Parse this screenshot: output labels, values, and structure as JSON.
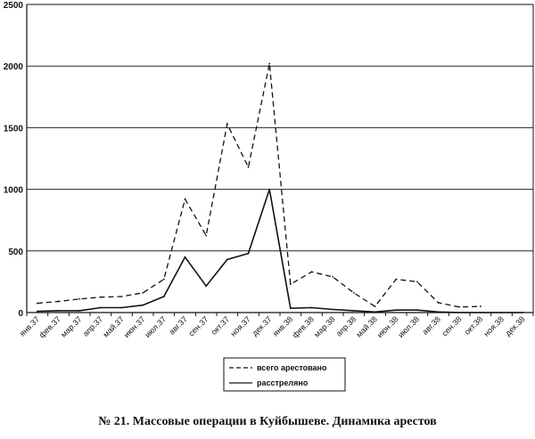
{
  "caption": "№ 21. Массовые операции в Куйбышеве. Динамика арестов",
  "chart_data": {
    "type": "line",
    "title": "",
    "xlabel": "",
    "ylabel": "",
    "ylim": [
      0,
      2500
    ],
    "yticks": [
      0,
      500,
      1000,
      1500,
      2000,
      2500
    ],
    "grid": true,
    "legend_position": "bottom-center",
    "categories": [
      "янв.37",
      "фев.37",
      "мар.37",
      "апр.37",
      "май.37",
      "июн.37",
      "июл.37",
      "авг.37",
      "сен.37",
      "окт.37",
      "ноя.37",
      "дек.37",
      "янв.38",
      "фев.38",
      "мар.38",
      "апр.38",
      "май.38",
      "июн.38",
      "июл.38",
      "авг.38",
      "сен.38",
      "окт.38",
      "ноя.38",
      "дек.38"
    ],
    "series": [
      {
        "name": "всего арестовано",
        "style": "dashed",
        "color": "#111111",
        "values": [
          75,
          90,
          110,
          125,
          130,
          160,
          270,
          920,
          625,
          1530,
          1180,
          2020,
          230,
          330,
          290,
          160,
          50,
          270,
          250,
          80,
          45,
          50,
          null,
          null
        ]
      },
      {
        "name": "расстреляно",
        "style": "solid",
        "color": "#111111",
        "values": [
          10,
          15,
          15,
          40,
          40,
          60,
          130,
          450,
          215,
          430,
          480,
          1000,
          35,
          40,
          25,
          15,
          5,
          20,
          20,
          5,
          0,
          0,
          0,
          0
        ]
      }
    ]
  }
}
